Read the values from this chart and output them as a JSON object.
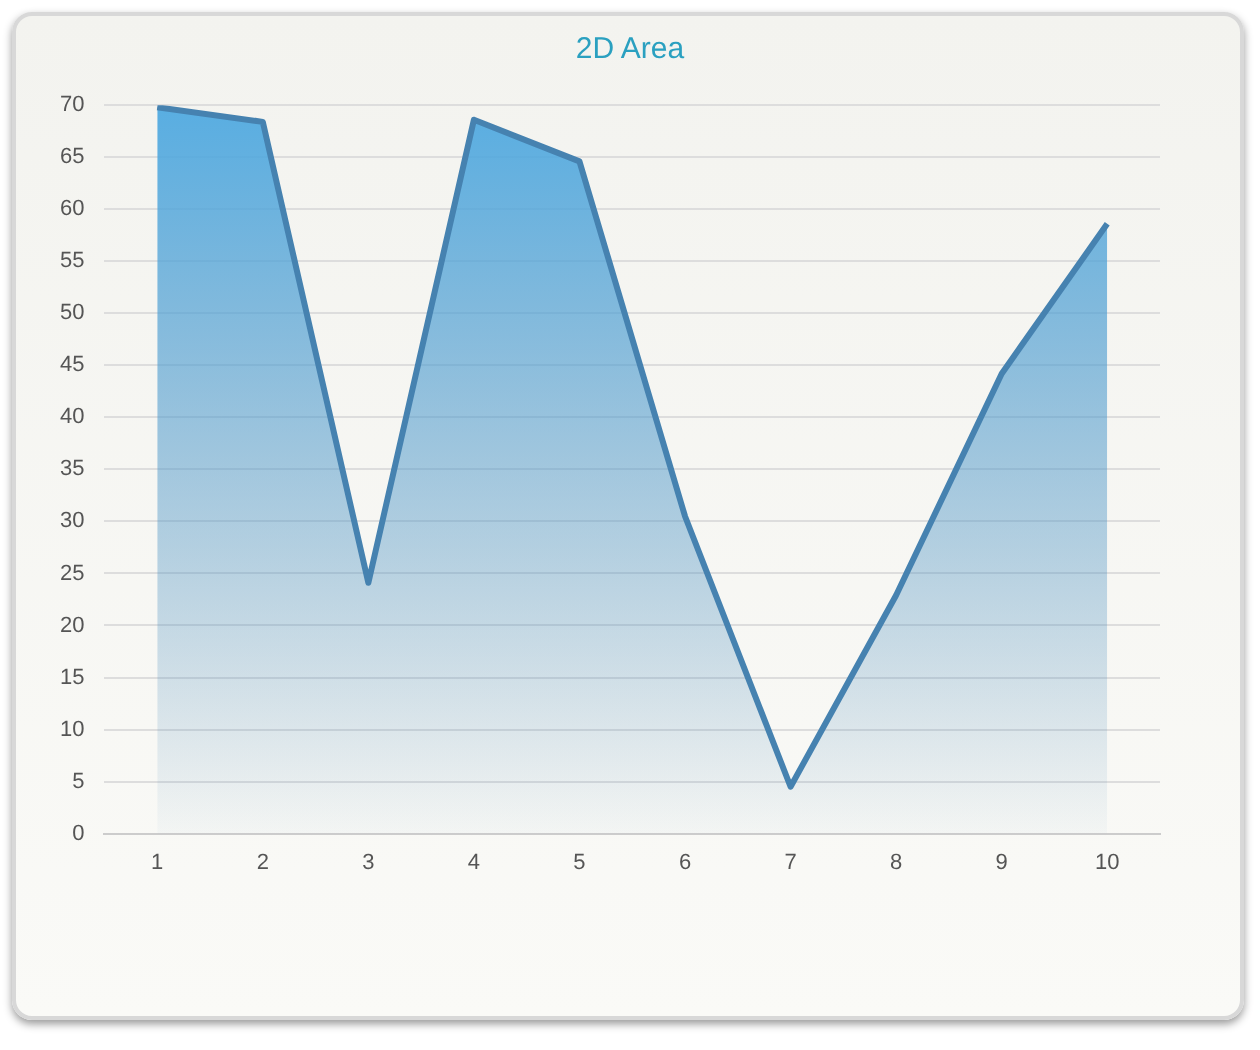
{
  "chart_data": {
    "type": "area",
    "title": "2D Area",
    "categories": [
      "1",
      "2",
      "3",
      "4",
      "5",
      "6",
      "7",
      "8",
      "9",
      "10"
    ],
    "series": [
      {
        "color": "#4682b0",
        "values": [
          69.8,
          68.4,
          24.1,
          68.6,
          64.6,
          30.5,
          4.5,
          22.9,
          44.2,
          58.6
        ]
      }
    ],
    "ylim": [
      0,
      70
    ],
    "yticks": [
      0,
      5,
      10,
      15,
      20,
      25,
      30,
      35,
      40,
      45,
      50,
      55,
      60,
      65,
      70
    ],
    "grid": "y",
    "legend": false,
    "marker": "none"
  }
}
